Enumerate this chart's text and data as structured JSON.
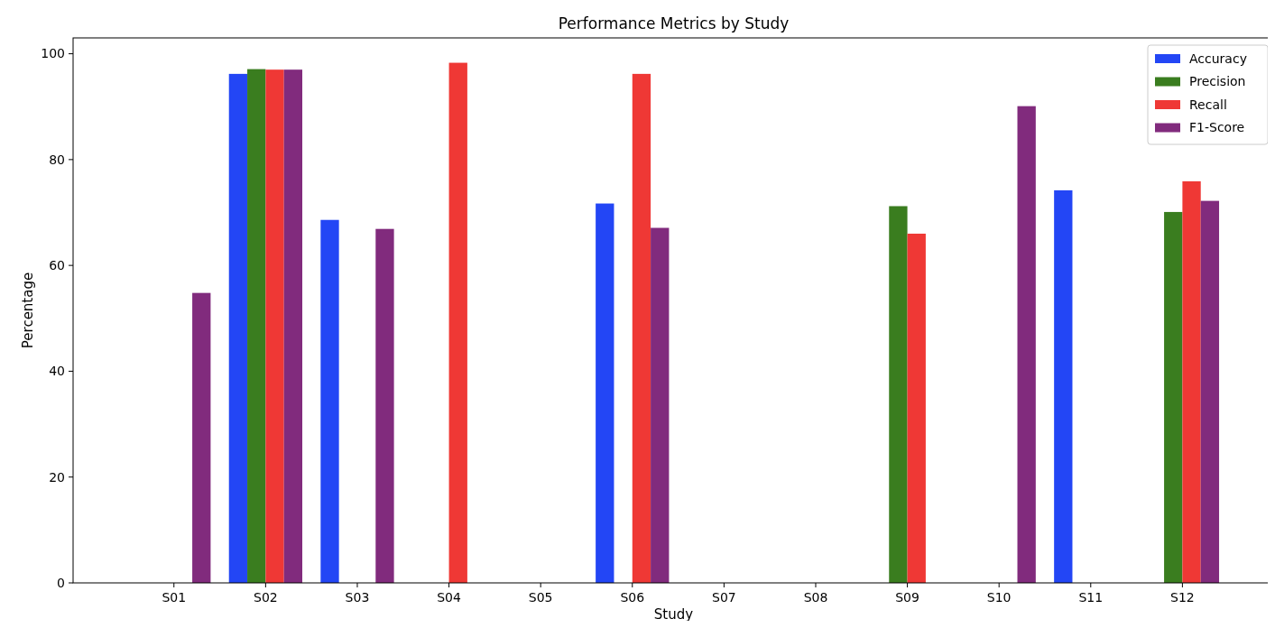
{
  "chart_data": {
    "type": "bar",
    "title": "Performance Metrics by Study",
    "xlabel": "Study",
    "ylabel": "Percentage",
    "categories": [
      "S01",
      "S02",
      "S03",
      "S04",
      "S05",
      "S06",
      "S07",
      "S08",
      "S09",
      "S10",
      "S11",
      "S12"
    ],
    "series": [
      {
        "name": "Accuracy",
        "color": "#2346f5",
        "values": [
          null,
          96.2,
          68.6,
          null,
          null,
          71.7,
          null,
          null,
          null,
          null,
          74.2,
          null
        ]
      },
      {
        "name": "Precision",
        "color": "#3a7d1f",
        "values": [
          null,
          97.1,
          null,
          null,
          null,
          null,
          null,
          null,
          71.2,
          null,
          null,
          70.1
        ]
      },
      {
        "name": "Recall",
        "color": "#ef3835",
        "values": [
          null,
          97,
          null,
          98.3,
          null,
          96.2,
          null,
          null,
          66,
          null,
          null,
          75.9
        ]
      },
      {
        "name": "F1-Score",
        "color": "#812b7d",
        "values": [
          54.8,
          97,
          66.9,
          null,
          null,
          67.1,
          null,
          null,
          null,
          90.1,
          null,
          72.2
        ]
      }
    ],
    "ylim": [
      0,
      103
    ],
    "yticks": [
      0,
      20,
      40,
      60,
      80,
      100
    ],
    "legend": "top right"
  }
}
